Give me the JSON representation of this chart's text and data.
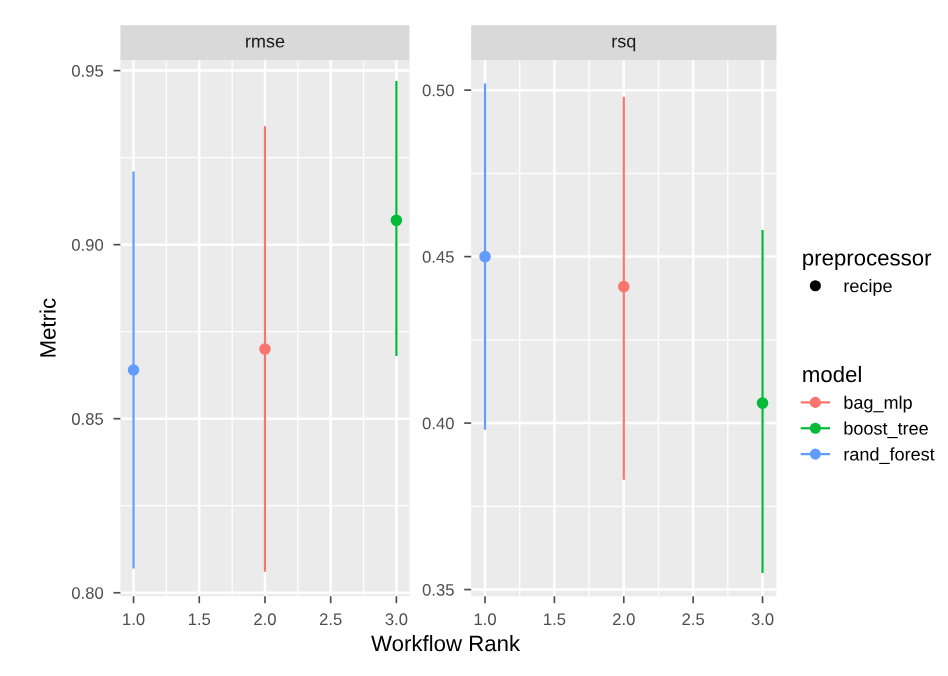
{
  "chart_data": [
    {
      "type": "scatter",
      "title": "rmse",
      "ylabel": "Metric",
      "xlabel": "Workflow Rank",
      "xlim": [
        0.9,
        3.1
      ],
      "xticks": [
        {
          "value": 1,
          "label": "1.0"
        },
        {
          "value": 1.5,
          "label": "1.5"
        },
        {
          "value": 2,
          "label": "2.0"
        },
        {
          "value": 2.5,
          "label": "2.5"
        },
        {
          "value": 3,
          "label": "3.0"
        }
      ],
      "ylim": [
        0.799,
        0.953
      ],
      "yticks": [
        {
          "value": 0.8,
          "label": "0.80"
        },
        {
          "value": 0.85,
          "label": "0.85"
        },
        {
          "value": 0.9,
          "label": "0.90"
        },
        {
          "value": 0.95,
          "label": "0.95"
        }
      ],
      "grid": true,
      "marker": "circle",
      "series": [
        {
          "color": "#f8766d",
          "x": [
            2
          ],
          "values": [
            0.87
          ],
          "errors": [
            [
              0.806,
              0.934
            ]
          ]
        },
        {
          "color": "#00ba38",
          "x": [
            3
          ],
          "values": [
            0.907
          ],
          "errors": [
            [
              0.868,
              0.947
            ]
          ]
        },
        {
          "color": "#619cff",
          "x": [
            1
          ],
          "values": [
            0.864
          ],
          "errors": [
            [
              0.807,
              0.921
            ]
          ]
        }
      ]
    },
    {
      "type": "scatter",
      "title": "rsq",
      "xlim": [
        0.9,
        3.1
      ],
      "xticks": [
        {
          "value": 1,
          "label": "1.0"
        },
        {
          "value": 1.5,
          "label": "1.5"
        },
        {
          "value": 2,
          "label": "2.0"
        },
        {
          "value": 2.5,
          "label": "2.5"
        },
        {
          "value": 3,
          "label": "3.0"
        }
      ],
      "ylim": [
        0.348,
        0.509
      ],
      "yticks": [
        {
          "value": 0.35,
          "label": "0.35"
        },
        {
          "value": 0.4,
          "label": "0.40"
        },
        {
          "value": 0.45,
          "label": "0.45"
        },
        {
          "value": 0.5,
          "label": "0.50"
        }
      ],
      "grid": true,
      "marker": "circle",
      "legend": "right",
      "legend_title": "model",
      "annotations": [
        "preprocessor",
        "recipe"
      ],
      "series": [
        {
          "name": "bag_mlp",
          "color": "#f8766d",
          "x": [
            2
          ],
          "values": [
            0.441
          ],
          "errors": [
            [
              0.383,
              0.498
            ]
          ]
        },
        {
          "name": "boost_tree",
          "color": "#00ba38",
          "x": [
            3
          ],
          "values": [
            0.406
          ],
          "errors": [
            [
              0.355,
              0.458
            ]
          ]
        },
        {
          "name": "rand_forest",
          "color": "#619cff",
          "x": [
            1
          ],
          "values": [
            0.45
          ],
          "errors": [
            [
              0.398,
              0.502
            ]
          ]
        }
      ]
    }
  ]
}
